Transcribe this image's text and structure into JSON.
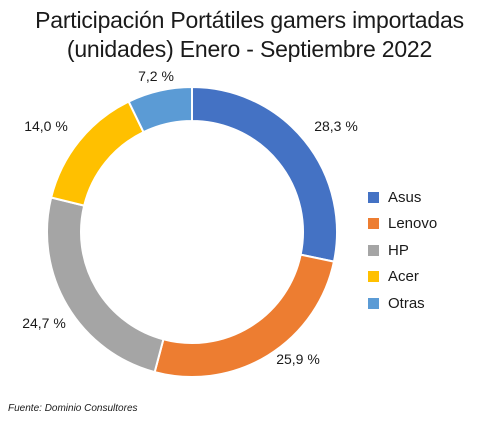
{
  "chart_data": {
    "type": "pie",
    "variant": "donut",
    "title_lines": [
      "Participación  Portátiles gamers importadas",
      "(unidades) Enero - Septiembre 2022"
    ],
    "categories": [
      "Asus",
      "Lenovo",
      "HP",
      "Acer",
      "Otras"
    ],
    "values": [
      28.3,
      25.9,
      24.7,
      14.0,
      7.2
    ],
    "value_labels": [
      "28,3 %",
      "25,9 %",
      "24,7 %",
      "14,0 %",
      "7,2 %"
    ],
    "colors": [
      "#4472c4",
      "#ed7d31",
      "#a5a5a5",
      "#ffc000",
      "#5b9bd5"
    ],
    "legend_position": "right",
    "source": "Fuente: Dominio Consultores"
  }
}
